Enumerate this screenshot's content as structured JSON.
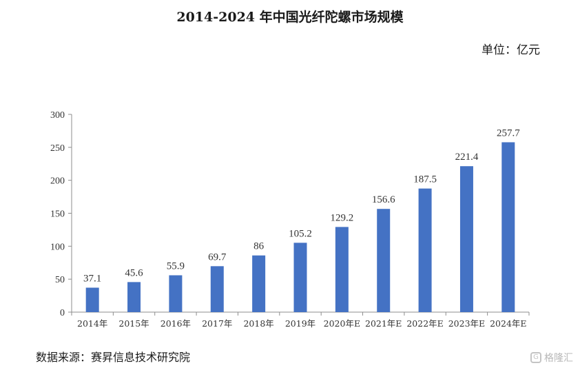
{
  "title": "2014-2024 年中国光纤陀螺市场规模",
  "unit_label": "单位：亿元",
  "source": "数据来源：赛昇信息技术研究院",
  "watermark": "格隆汇",
  "chart_data": {
    "type": "bar",
    "categories": [
      "2014年",
      "2015年",
      "2016年",
      "2017年",
      "2018年",
      "2019年",
      "2020年E",
      "2021年E",
      "2022年E",
      "2023年E",
      "2024年E"
    ],
    "values": [
      37.1,
      45.6,
      55.9,
      69.7,
      86,
      105.2,
      129.2,
      156.6,
      187.5,
      221.4,
      257.7
    ],
    "value_labels": [
      "37.1",
      "45.6",
      "55.9",
      "69.7",
      "86",
      "105.2",
      "129.2",
      "156.6",
      "187.5",
      "221.4",
      "257.7"
    ],
    "yticks": [
      0,
      50,
      100,
      150,
      200,
      250,
      300
    ],
    "ylim": [
      0,
      300
    ],
    "bar_color": "#4472C4",
    "grid": false,
    "legend": false
  }
}
